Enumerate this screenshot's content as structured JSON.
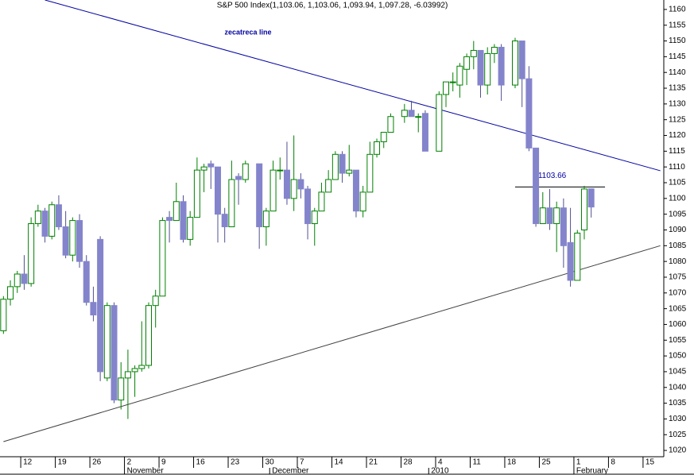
{
  "chart_data": {
    "type": "candlestick",
    "title": "S&P 500 Index(1,103.06, 1,103.06, 1,093.94, 1,097.28, -6.03992)",
    "categories": [
      null,
      null,
      null,
      "12",
      null,
      null,
      null,
      null,
      "19",
      null,
      null,
      null,
      null,
      "26",
      null,
      null,
      null,
      null,
      "2",
      null,
      null,
      null,
      null,
      "9",
      null,
      null,
      null,
      null,
      "16",
      null,
      null,
      null,
      null,
      "23",
      null,
      null,
      null,
      null,
      "30",
      null,
      null,
      null,
      null,
      "7",
      null,
      null,
      null,
      null,
      "14",
      null,
      null,
      null,
      null,
      "21",
      null,
      null,
      null,
      null,
      "28",
      null,
      null,
      null,
      null,
      "4",
      null,
      null,
      null,
      null,
      "11",
      null,
      null,
      null,
      null,
      "18",
      null,
      null,
      null,
      null,
      "25",
      null,
      null,
      null,
      null,
      "1",
      null,
      null,
      null,
      null,
      "8",
      null,
      null,
      null,
      null,
      "15",
      null,
      null
    ],
    "months": [
      {
        "value": 18,
        "label": "November"
      },
      {
        "value": 39,
        "label": "December"
      },
      {
        "value": 62,
        "label": "2010"
      },
      {
        "value": 83,
        "label": "February"
      }
    ],
    "open": [
      1058,
      1068,
      1072,
      1076,
      1073,
      1092,
      1096,
      1088,
      1098,
      1091,
      1082,
      1093,
      1080,
      1067,
      1087,
      1043,
      1066,
      1036,
      1043,
      1045,
      1046,
      1047,
      1066,
      1069,
      1094,
      1093,
      1099,
      1087,
      1094,
      1109,
      1111,
      1110,
      1095,
      1091,
      1107,
      1106,
      null,
      1111,
      1091,
      1096,
      1109,
      1109,
      1100,
      1106,
      1103,
      1092,
      1096,
      1102,
      1106,
      1114,
      1108,
      1109,
      1096,
      1102,
      1114,
      1118,
      1121,
      null,
      1126,
      1128,
      1126,
      1127,
      null,
      1115,
      1133,
      1137,
      1136,
      1141,
      1145,
      1147,
      1136,
      1146,
      1148,
      null,
      1136,
      1150,
      1138,
      1116,
      1092,
      1097,
      1092,
      1097,
      1086,
      1074,
      1090,
      1103.06,
      null,
      null,
      null,
      null,
      null,
      null,
      null,
      null,
      null,
      null
    ],
    "high": [
      1069,
      1074,
      1077,
      1082,
      1094,
      1098,
      1097,
      1099,
      1101,
      1096,
      1094,
      1095,
      1082,
      1072,
      1088,
      1067,
      1067,
      1048,
      1052,
      1047,
      1061,
      1067,
      1071,
      1094,
      1096,
      1105,
      1101,
      1096,
      1113,
      1111,
      1112,
      1110,
      1097,
      1112,
      1108,
      1112,
      null,
      1111,
      1097,
      1112,
      1113,
      1118,
      1120,
      1108,
      1104,
      1097,
      1105,
      1109,
      1115,
      1115,
      1117,
      1109,
      1104,
      1118,
      1119,
      1121,
      1127,
      null,
      1130,
      1131,
      1127,
      1128,
      null,
      1134,
      1137,
      1140,
      1143,
      1146,
      1150,
      1147,
      1148,
      1149,
      1149,
      null,
      1151,
      1150,
      1142,
      1116,
      1102,
      1103,
      1099,
      1100,
      1097,
      1090,
      1104,
      1103.06,
      null,
      null,
      null,
      null,
      null,
      null,
      null,
      null,
      null,
      null
    ],
    "low": [
      1057,
      1066,
      1070,
      1071,
      1072,
      1091,
      1086,
      1087,
      1090,
      1081,
      1080,
      1078,
      1066,
      1061,
      1042,
      1042,
      1035,
      1033,
      1030,
      1037,
      1045,
      1046,
      1059,
      1069,
      1086,
      1093,
      1086,
      1085,
      1094,
      1102,
      1103,
      1086,
      1086,
      1091,
      1098,
      1105,
      null,
      1084,
      1085,
      1096,
      1106,
      1098,
      1096,
      1100,
      1087,
      1085,
      1096,
      1102,
      1106,
      1105,
      1107,
      1094,
      1094,
      1102,
      1113,
      1116,
      1121,
      null,
      1124,
      1126,
      1121,
      1115,
      null,
      1115,
      1129,
      1134,
      1132,
      1136,
      1141,
      1132,
      1133,
      1143,
      1131,
      null,
      1135,
      1129,
      1115,
      1091,
      1092,
      1090,
      1083,
      1078,
      1072,
      1074,
      1087,
      1093.94,
      null,
      null,
      null,
      null,
      null,
      null,
      null,
      null,
      null,
      null
    ],
    "close": [
      1068,
      1072,
      1076,
      1073,
      1092,
      1096,
      1088,
      1098,
      1091,
      1082,
      1093,
      1080,
      1067,
      1063,
      1045,
      1066,
      1036,
      1043,
      1045,
      1046,
      1047,
      1066,
      1069,
      1093,
      1093,
      1099,
      1087,
      1094,
      1109,
      1110,
      1110,
      1095,
      1091,
      1106,
      1106,
      1111,
      null,
      1091,
      1096,
      1109,
      1109,
      1100,
      1106,
      1103,
      1092,
      1096,
      1102,
      1106,
      1114,
      1108,
      1109,
      1096,
      1102,
      1114,
      1118,
      1121,
      1126,
      null,
      1128,
      1126,
      1126,
      1115,
      null,
      1133,
      1137,
      1137,
      1142,
      1145,
      1147,
      1136,
      1146,
      1148,
      1136,
      null,
      1150,
      1138,
      1116,
      1092,
      1097,
      1092,
      1097,
      1085,
      1074,
      1089,
      1103,
      1097.28,
      null,
      null,
      null,
      null,
      null,
      null,
      null,
      null,
      null,
      null
    ],
    "up_color": "#008000",
    "down_color": "#8484cc",
    "ylim": [
      1018,
      1163
    ],
    "yticks": [
      1020,
      1025,
      1030,
      1035,
      1040,
      1045,
      1050,
      1055,
      1060,
      1065,
      1070,
      1075,
      1080,
      1085,
      1090,
      1095,
      1100,
      1105,
      1110,
      1115,
      1120,
      1125,
      1130,
      1135,
      1140,
      1145,
      1150,
      1155,
      1160
    ],
    "trendlines": [
      {
        "label": "zecatreca line",
        "color": "#0000a0",
        "from": [
          6,
          1163
        ],
        "to": [
          95,
          1108.8
        ]
      },
      {
        "color": "#404040",
        "from": [
          0,
          1022.8
        ],
        "to": [
          95,
          1085
        ]
      }
    ],
    "level": {
      "value": 1103.66,
      "start": 74,
      "end": 87,
      "color": "#0000a0"
    }
  }
}
